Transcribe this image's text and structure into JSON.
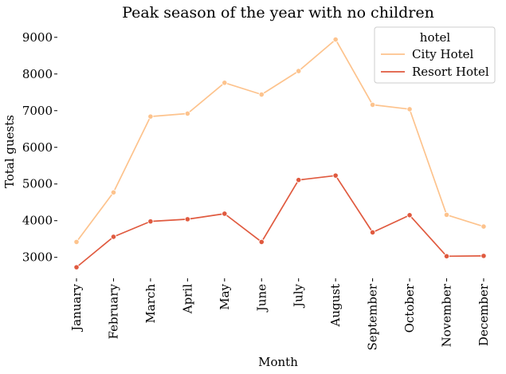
{
  "chart_data": {
    "type": "line",
    "title": "Peak season of the year with no children",
    "xlabel": "Month",
    "ylabel": "Total guests",
    "categories": [
      "January",
      "February",
      "March",
      "April",
      "May",
      "June",
      "July",
      "August",
      "September",
      "October",
      "November",
      "December"
    ],
    "ylim": [
      2450,
      9300
    ],
    "yticks": [
      3000,
      4000,
      5000,
      6000,
      7000,
      8000,
      9000
    ],
    "grid": false,
    "legend": {
      "title": "hotel",
      "position": "top-right"
    },
    "series": [
      {
        "name": "City Hotel",
        "color": "#fdc38d",
        "values": [
          3420,
          4770,
          6840,
          6920,
          7760,
          7440,
          8080,
          8940,
          7160,
          7040,
          4160,
          3840
        ]
      },
      {
        "name": "Resort Hotel",
        "color": "#e05a3f",
        "values": [
          2730,
          3560,
          3980,
          4040,
          4190,
          3420,
          5110,
          5230,
          3680,
          4150,
          3030,
          3040
        ]
      }
    ]
  }
}
